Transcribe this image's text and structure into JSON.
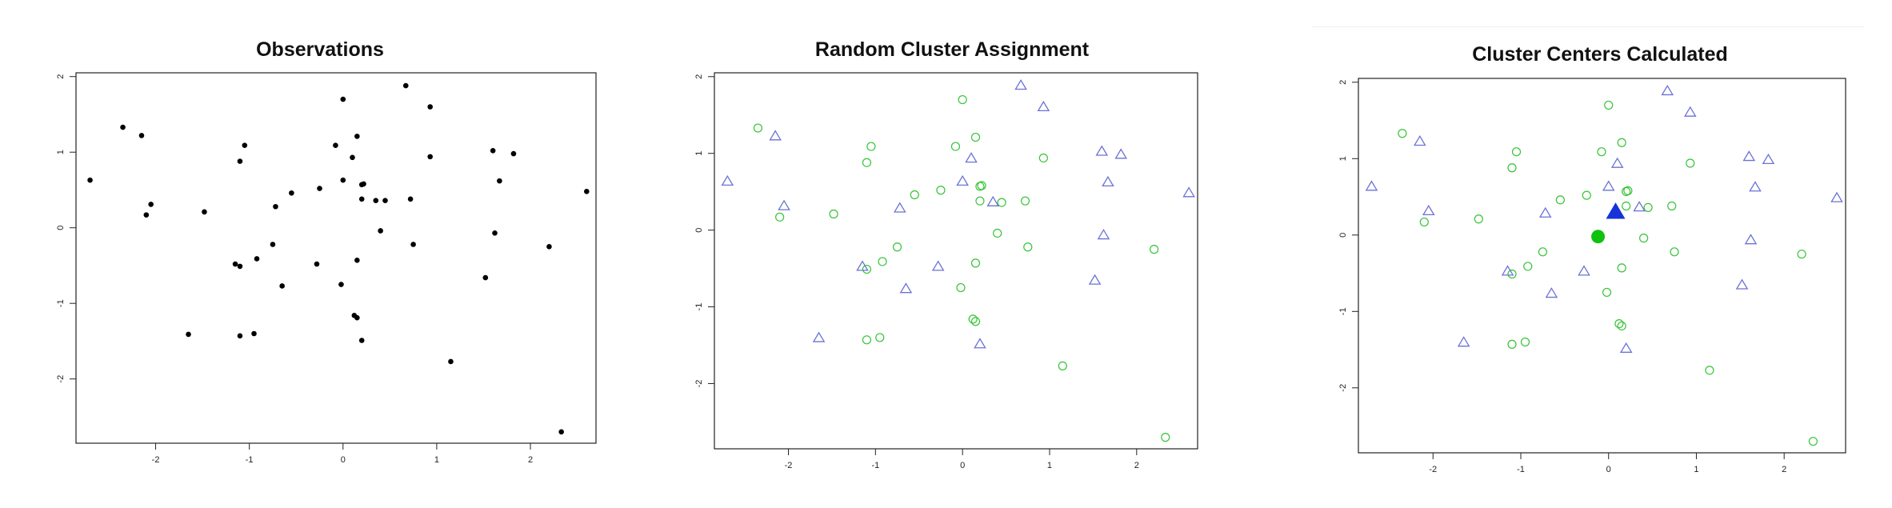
{
  "colors": {
    "point": "#000000",
    "green": "#35c435",
    "blue": "#6b72d6",
    "center_green": "#0fc20f",
    "center_blue": "#1533d8"
  },
  "chart_data": [
    {
      "type": "scatter",
      "title": "Observations",
      "xlabel": "",
      "ylabel": "",
      "xlim": [
        -2.85,
        2.7
      ],
      "ylim": [
        -2.85,
        2.05
      ],
      "x_ticks": [
        "-2",
        "-1",
        "0",
        "1",
        "2"
      ],
      "y_ticks": [
        "-2",
        "-1",
        "0",
        "1",
        "2"
      ],
      "grid": false,
      "series": [
        {
          "marker": "dot",
          "points": [
            [
              -2.7,
              0.63
            ],
            [
              -2.35,
              1.33
            ],
            [
              -2.15,
              1.22
            ],
            [
              -2.1,
              0.17
            ],
            [
              -2.05,
              0.31
            ],
            [
              -1.65,
              -1.41
            ],
            [
              -1.48,
              0.21
            ],
            [
              -1.15,
              -0.48
            ],
            [
              -1.1,
              -0.51
            ],
            [
              -1.1,
              -1.43
            ],
            [
              -1.1,
              0.88
            ],
            [
              -1.05,
              1.09
            ],
            [
              -0.95,
              -1.4
            ],
            [
              -0.92,
              -0.41
            ],
            [
              -0.75,
              -0.22
            ],
            [
              -0.72,
              0.28
            ],
            [
              -0.65,
              -0.77
            ],
            [
              -0.55,
              0.46
            ],
            [
              -0.28,
              -0.48
            ],
            [
              -0.25,
              0.52
            ],
            [
              -0.08,
              1.09
            ],
            [
              -0.02,
              -0.75
            ],
            [
              0.0,
              1.7
            ],
            [
              0.0,
              0.63
            ],
            [
              0.1,
              0.93
            ],
            [
              0.12,
              -1.16
            ],
            [
              0.15,
              1.21
            ],
            [
              0.15,
              -1.19
            ],
            [
              0.15,
              -0.43
            ],
            [
              0.2,
              0.57
            ],
            [
              0.2,
              0.38
            ],
            [
              0.22,
              0.58
            ],
            [
              0.2,
              -1.49
            ],
            [
              0.35,
              0.36
            ],
            [
              0.4,
              -0.04
            ],
            [
              0.45,
              0.36
            ],
            [
              0.67,
              1.88
            ],
            [
              0.72,
              0.38
            ],
            [
              0.75,
              -0.22
            ],
            [
              0.93,
              0.94
            ],
            [
              0.93,
              1.6
            ],
            [
              1.15,
              -1.77
            ],
            [
              1.52,
              -0.66
            ],
            [
              1.6,
              1.02
            ],
            [
              1.62,
              -0.07
            ],
            [
              1.67,
              0.62
            ],
            [
              1.82,
              0.98
            ],
            [
              2.2,
              -0.25
            ],
            [
              2.33,
              -2.7
            ],
            [
              2.6,
              0.48
            ]
          ]
        }
      ]
    },
    {
      "type": "scatter",
      "title": "Random Cluster Assignment",
      "xlabel": "",
      "ylabel": "",
      "xlim": [
        -2.85,
        2.7
      ],
      "ylim": [
        -2.85,
        2.05
      ],
      "x_ticks": [
        "-2",
        "-1",
        "0",
        "1",
        "2"
      ],
      "y_ticks": [
        "-2",
        "-1",
        "0",
        "1",
        "2"
      ],
      "grid": false,
      "series": [
        {
          "marker": "circle",
          "color": "green",
          "points": [
            [
              -2.35,
              1.33
            ],
            [
              -2.1,
              0.17
            ],
            [
              -1.48,
              0.21
            ],
            [
              -1.1,
              -0.51
            ],
            [
              -1.1,
              -1.43
            ],
            [
              -1.1,
              0.88
            ],
            [
              -1.05,
              1.09
            ],
            [
              -0.95,
              -1.4
            ],
            [
              -0.92,
              -0.41
            ],
            [
              -0.75,
              -0.22
            ],
            [
              -0.55,
              0.46
            ],
            [
              -0.25,
              0.52
            ],
            [
              -0.08,
              1.09
            ],
            [
              -0.02,
              -0.75
            ],
            [
              0.0,
              1.7
            ],
            [
              0.12,
              -1.16
            ],
            [
              0.15,
              1.21
            ],
            [
              0.15,
              -1.19
            ],
            [
              0.15,
              -0.43
            ],
            [
              0.2,
              0.57
            ],
            [
              0.2,
              0.38
            ],
            [
              0.22,
              0.58
            ],
            [
              0.4,
              -0.04
            ],
            [
              0.45,
              0.36
            ],
            [
              0.72,
              0.38
            ],
            [
              0.75,
              -0.22
            ],
            [
              0.93,
              0.94
            ],
            [
              1.15,
              -1.77
            ],
            [
              2.2,
              -0.25
            ],
            [
              2.33,
              -2.7
            ]
          ]
        },
        {
          "marker": "triangle",
          "color": "blue",
          "points": [
            [
              -2.7,
              0.63
            ],
            [
              -2.15,
              1.22
            ],
            [
              -2.05,
              0.31
            ],
            [
              -1.65,
              -1.41
            ],
            [
              -1.15,
              -0.48
            ],
            [
              -0.72,
              0.28
            ],
            [
              -0.65,
              -0.77
            ],
            [
              -0.28,
              -0.48
            ],
            [
              0.0,
              0.63
            ],
            [
              0.1,
              0.93
            ],
            [
              0.2,
              -1.49
            ],
            [
              0.35,
              0.36
            ],
            [
              0.67,
              1.88
            ],
            [
              0.93,
              1.6
            ],
            [
              1.52,
              -0.66
            ],
            [
              1.6,
              1.02
            ],
            [
              1.62,
              -0.07
            ],
            [
              1.67,
              0.62
            ],
            [
              1.82,
              0.98
            ],
            [
              2.6,
              0.48
            ]
          ]
        }
      ]
    },
    {
      "type": "scatter",
      "title": "Cluster Centers Calculated",
      "xlabel": "",
      "ylabel": "",
      "xlim": [
        -2.85,
        2.7
      ],
      "ylim": [
        -2.85,
        2.05
      ],
      "x_ticks": [
        "-2",
        "-1",
        "0",
        "1",
        "2"
      ],
      "y_ticks": [
        "-2",
        "-1",
        "0",
        "1",
        "2"
      ],
      "grid": false,
      "series": [
        {
          "marker": "circle",
          "color": "green",
          "points": [
            [
              -2.35,
              1.33
            ],
            [
              -2.1,
              0.17
            ],
            [
              -1.48,
              0.21
            ],
            [
              -1.1,
              -0.51
            ],
            [
              -1.1,
              -1.43
            ],
            [
              -1.1,
              0.88
            ],
            [
              -1.05,
              1.09
            ],
            [
              -0.95,
              -1.4
            ],
            [
              -0.92,
              -0.41
            ],
            [
              -0.75,
              -0.22
            ],
            [
              -0.55,
              0.46
            ],
            [
              -0.25,
              0.52
            ],
            [
              -0.08,
              1.09
            ],
            [
              -0.02,
              -0.75
            ],
            [
              0.0,
              1.7
            ],
            [
              0.12,
              -1.16
            ],
            [
              0.15,
              1.21
            ],
            [
              0.15,
              -1.19
            ],
            [
              0.15,
              -0.43
            ],
            [
              0.2,
              0.57
            ],
            [
              0.2,
              0.38
            ],
            [
              0.22,
              0.58
            ],
            [
              0.4,
              -0.04
            ],
            [
              0.45,
              0.36
            ],
            [
              0.72,
              0.38
            ],
            [
              0.75,
              -0.22
            ],
            [
              0.93,
              0.94
            ],
            [
              1.15,
              -1.77
            ],
            [
              2.2,
              -0.25
            ],
            [
              2.33,
              -2.7
            ]
          ]
        },
        {
          "marker": "triangle",
          "color": "blue",
          "points": [
            [
              -2.7,
              0.63
            ],
            [
              -2.15,
              1.22
            ],
            [
              -2.05,
              0.31
            ],
            [
              -1.65,
              -1.41
            ],
            [
              -1.15,
              -0.48
            ],
            [
              -0.72,
              0.28
            ],
            [
              -0.65,
              -0.77
            ],
            [
              -0.28,
              -0.48
            ],
            [
              0.0,
              0.63
            ],
            [
              0.1,
              0.93
            ],
            [
              0.2,
              -1.49
            ],
            [
              0.35,
              0.36
            ],
            [
              0.67,
              1.88
            ],
            [
              0.93,
              1.6
            ],
            [
              1.52,
              -0.66
            ],
            [
              1.6,
              1.02
            ],
            [
              1.62,
              -0.07
            ],
            [
              1.67,
              0.62
            ],
            [
              1.82,
              0.98
            ],
            [
              2.6,
              0.48
            ]
          ]
        },
        {
          "marker": "filled-circle",
          "color": "center_green",
          "points": [
            [
              -0.12,
              -0.02
            ]
          ]
        },
        {
          "marker": "filled-triangle",
          "color": "center_blue",
          "points": [
            [
              0.08,
              0.3
            ]
          ]
        }
      ]
    }
  ]
}
